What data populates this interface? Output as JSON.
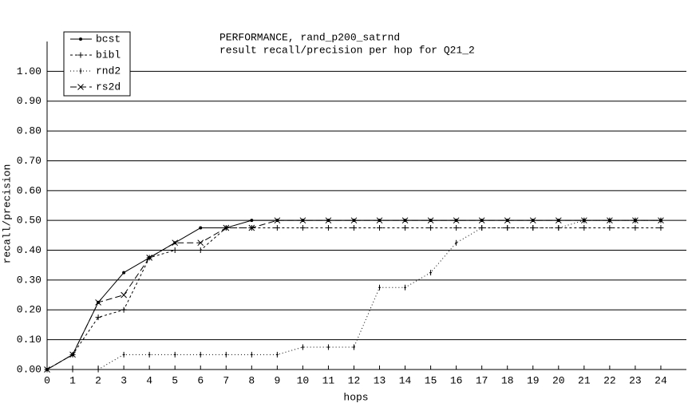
{
  "chart_data": {
    "type": "line",
    "title": "PERFORMANCE, rand_p200_satrnd",
    "subtitle": "result recall/precision per hop for Q21_2",
    "x_label": "hops",
    "y_label": "recall/precision",
    "x": [
      0,
      1,
      2,
      3,
      4,
      5,
      6,
      7,
      8,
      9,
      10,
      11,
      12,
      13,
      14,
      15,
      16,
      17,
      18,
      19,
      20,
      21,
      22,
      23,
      24
    ],
    "series": [
      {
        "name": "bcst",
        "color": "#000000",
        "marker": "dot",
        "dash": "none",
        "values": [
          0,
          0.05,
          0.225,
          0.325,
          0.375,
          0.425,
          0.475,
          0.475,
          0.5,
          0.5,
          0.5,
          0.5,
          0.5,
          0.5,
          0.5,
          0.5,
          0.5,
          0.5,
          0.5,
          0.5,
          0.5,
          0.5,
          0.5,
          0.5,
          0.5
        ]
      },
      {
        "name": "bibl",
        "color": "#000000",
        "marker": "plus",
        "dash": "3,3",
        "values": [
          0,
          0.05,
          0.175,
          0.2,
          0.375,
          0.4,
          0.4,
          0.475,
          0.475,
          0.475,
          0.475,
          0.475,
          0.475,
          0.475,
          0.475,
          0.475,
          0.475,
          0.475,
          0.475,
          0.475,
          0.475,
          0.475,
          0.475,
          0.475,
          0.475
        ]
      },
      {
        "name": "rnd2",
        "color": "#000000",
        "marker": "tick",
        "dash": "1,3",
        "values": [
          0,
          0,
          0,
          0.05,
          0.05,
          0.05,
          0.05,
          0.05,
          0.05,
          0.05,
          0.075,
          0.075,
          0.075,
          0.275,
          0.275,
          0.325,
          0.425,
          0.475,
          0.475,
          0.475,
          0.475,
          0.5,
          0.5,
          0.5,
          0.5
        ]
      },
      {
        "name": "rs2d",
        "color": "#000000",
        "marker": "cross",
        "dash": "8,4",
        "values": [
          0,
          0.05,
          0.225,
          0.25,
          0.375,
          0.425,
          0.425,
          0.475,
          0.475,
          0.5,
          0.5,
          0.5,
          0.5,
          0.5,
          0.5,
          0.5,
          0.5,
          0.5,
          0.5,
          0.5,
          0.5,
          0.5,
          0.5,
          0.5,
          0.5
        ]
      }
    ],
    "xlim": [
      0,
      25
    ],
    "xticks": [
      0,
      1,
      2,
      3,
      4,
      5,
      6,
      7,
      8,
      9,
      10,
      11,
      12,
      13,
      14,
      15,
      16,
      17,
      18,
      19,
      20,
      21,
      22,
      23,
      24
    ],
    "ylim": [
      0,
      1.1
    ],
    "yticks": [
      {
        "value": 0,
        "label": "0.00"
      },
      {
        "value": 0.1,
        "label": "0.10"
      },
      {
        "value": 0.2,
        "label": "0.20"
      },
      {
        "value": 0.3,
        "label": "0.30"
      },
      {
        "value": 0.4,
        "label": "0.40"
      },
      {
        "value": 0.5,
        "label": "0.50"
      },
      {
        "value": 0.6,
        "label": "0.60"
      },
      {
        "value": 0.7,
        "label": "0.70"
      },
      {
        "value": 0.8,
        "label": "0.80"
      },
      {
        "value": 0.9,
        "label": "0.90"
      },
      {
        "value": 1,
        "label": "1.00"
      }
    ],
    "grid": true,
    "legend": "upper-left"
  }
}
